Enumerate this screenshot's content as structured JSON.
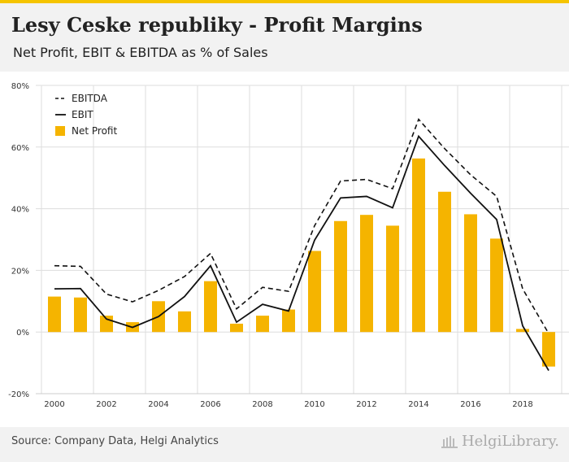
{
  "header": {
    "title": "Lesy Ceske republiky - Profit Margins",
    "subtitle": "Net Profit, EBIT & EBITDA as % of Sales"
  },
  "footer": {
    "source": "Source: Company Data, Helgi Analytics",
    "logo_text": "HelgiLibrary."
  },
  "colors": {
    "bar": "#f5b400",
    "ebit": "#111111",
    "ebitda": "#111111",
    "grid": "#dddddd",
    "axis_text": "#333333"
  },
  "chart_data": {
    "type": "bar",
    "x": [
      2000,
      2001,
      2002,
      2003,
      2004,
      2005,
      2006,
      2007,
      2008,
      2009,
      2010,
      2011,
      2012,
      2013,
      2014,
      2015,
      2016,
      2017,
      2018,
      2019
    ],
    "x_tick_labels": [
      "2000",
      "2002",
      "2004",
      "2006",
      "2008",
      "2010",
      "2012",
      "2014",
      "2016",
      "2018"
    ],
    "y_tick_labels": [
      "80%",
      "60%",
      "40%",
      "20%",
      "0%",
      "-20%"
    ],
    "ylim": [
      -20,
      80
    ],
    "grid": true,
    "legend_position": "top-left",
    "series": [
      {
        "name": "EBITDA",
        "style": "dashed-line",
        "values": [
          21.5,
          21.3,
          12.3,
          9.8,
          13.5,
          18.0,
          25.5,
          7.5,
          14.5,
          13.2,
          34.5,
          49.0,
          49.5,
          46.5,
          69.0,
          59.5,
          51.0,
          44.0,
          14.0,
          -0.5
        ]
      },
      {
        "name": "EBIT",
        "style": "solid-line",
        "values": [
          14.0,
          14.1,
          4.2,
          1.5,
          5.0,
          11.5,
          21.5,
          3.2,
          9.0,
          6.8,
          29.8,
          43.5,
          44.0,
          40.3,
          63.5,
          54.0,
          45.0,
          36.5,
          2.0,
          -12.5
        ]
      },
      {
        "name": "Net Profit",
        "style": "bar",
        "values": [
          11.5,
          11.2,
          5.3,
          3.2,
          10.0,
          6.7,
          16.5,
          2.7,
          5.3,
          7.3,
          26.3,
          36.0,
          38.0,
          34.5,
          56.3,
          45.5,
          38.2,
          30.3,
          1.0,
          -11.2
        ]
      }
    ]
  }
}
